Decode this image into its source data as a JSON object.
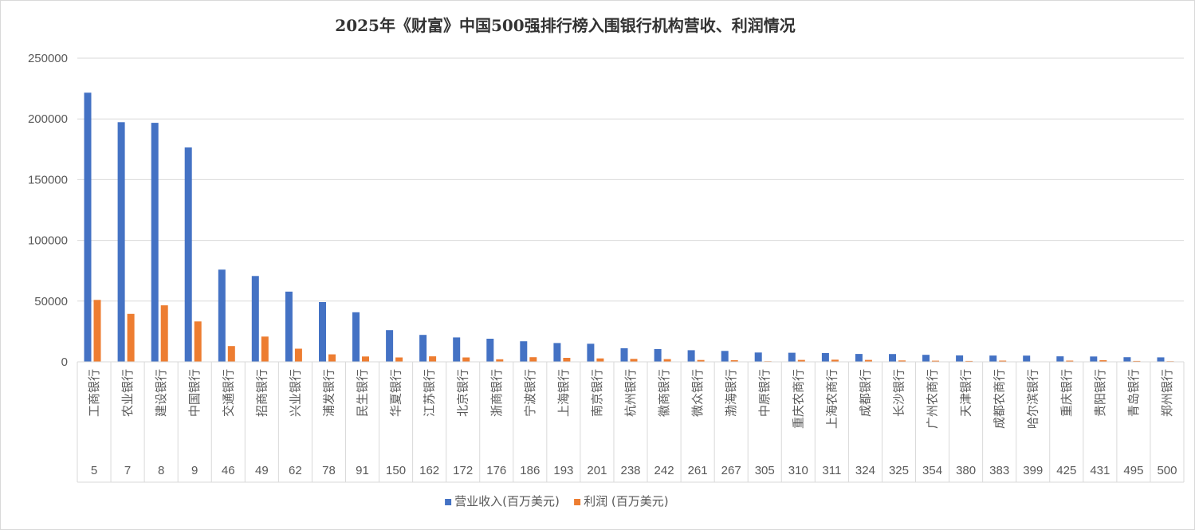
{
  "chart_data": {
    "type": "bar",
    "title": "2025年《财富》中国500强排行榜入围银行机构营收、利润情况",
    "xlabel": "",
    "ylabel": "",
    "ylim": [
      0,
      250000
    ],
    "yticks": [
      0,
      50000,
      100000,
      150000,
      200000,
      250000
    ],
    "grid": true,
    "legend_position": "bottom",
    "categories": [
      "工商银行",
      "农业银行",
      "建设银行",
      "中国银行",
      "交通银行",
      "招商银行",
      "兴业银行",
      "浦发银行",
      "民生银行",
      "华夏银行",
      "江苏银行",
      "北京银行",
      "浙商银行",
      "宁波银行",
      "上海银行",
      "南京银行",
      "杭州银行",
      "徽商银行",
      "微众银行",
      "渤海银行",
      "中原银行",
      "重庆农商行",
      "上海农商行",
      "成都银行",
      "长沙银行",
      "广州农商行",
      "天津银行",
      "成都农商行",
      "哈尔滨银行",
      "重庆银行",
      "贵阳银行",
      "青岛银行",
      "郑州银行"
    ],
    "ranks": [
      "5",
      "7",
      "8",
      "9",
      "46",
      "49",
      "62",
      "78",
      "91",
      "150",
      "162",
      "172",
      "176",
      "186",
      "193",
      "201",
      "238",
      "242",
      "261",
      "267",
      "305",
      "310",
      "311",
      "324",
      "325",
      "354",
      "380",
      "383",
      "399",
      "425",
      "431",
      "495",
      "500"
    ],
    "series": [
      {
        "name": "营业收入(百万美元)",
        "color": "#4472c4",
        "values": [
          221600,
          197300,
          196800,
          176500,
          75900,
          70700,
          57800,
          49200,
          40800,
          26100,
          22200,
          20100,
          19000,
          16900,
          15500,
          14900,
          11200,
          10500,
          9600,
          9000,
          7700,
          7500,
          7200,
          6500,
          6400,
          5800,
          5300,
          5200,
          5100,
          4500,
          4400,
          3800,
          3700
        ]
      },
      {
        "name": "利润 (百万美元)",
        "color": "#ed7d31",
        "values": [
          51000,
          39500,
          46500,
          33300,
          13000,
          20800,
          10800,
          6200,
          4400,
          3600,
          4500,
          3600,
          2100,
          3800,
          3300,
          2800,
          2400,
          2200,
          1500,
          1300,
          500,
          1600,
          1800,
          1600,
          1100,
          900,
          700,
          1000,
          300,
          1000,
          1300,
          700,
          500
        ]
      }
    ]
  }
}
